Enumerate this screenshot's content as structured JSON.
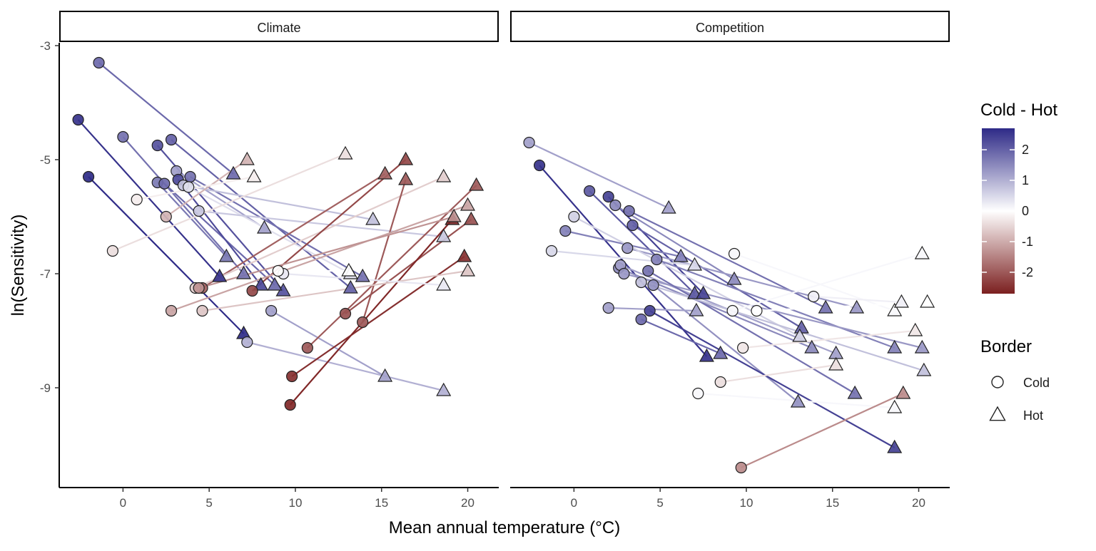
{
  "chart_data": {
    "type": "scatter",
    "xlabel": "Mean annual temperature (°C)",
    "ylabel": "ln(Sensitivity)",
    "xlim": [
      -3.7,
      21.8
    ],
    "ylim": [
      -10.75,
      -2.95
    ],
    "x_ticks": [
      0,
      5,
      10,
      15,
      20
    ],
    "y_ticks": [
      -3,
      -5,
      -7,
      -9
    ],
    "grid": false,
    "legend_position": "right",
    "color_scale": {
      "title": "Cold - Hot",
      "min": -2.7,
      "max": 2.7,
      "ticks": [
        2,
        1,
        0,
        -1,
        -2
      ],
      "low_color": "#7b1f1f",
      "mid_color": "#ffffff",
      "high_color": "#2e2a87"
    },
    "shape_legend": {
      "title": "Border",
      "items": [
        {
          "label": "Cold",
          "shape": "circle"
        },
        {
          "label": "Hot",
          "shape": "triangle"
        }
      ]
    },
    "panels": [
      {
        "label": "Climate",
        "pairs": [
          {
            "cold": [
              -1.4,
              -3.3
            ],
            "hot": [
              6.4,
              -5.25
            ],
            "value": 1.9
          },
          {
            "cold": [
              -2.6,
              -4.3
            ],
            "hot": [
              5.6,
              -7.05
            ],
            "value": 2.6
          },
          {
            "cold": [
              -2.0,
              -5.3
            ],
            "hot": [
              7.0,
              -8.05
            ],
            "value": 2.7
          },
          {
            "cold": [
              0.0,
              -4.6
            ],
            "hot": [
              7.0,
              -7.0
            ],
            "value": 1.8
          },
          {
            "cold": [
              2.0,
              -4.75
            ],
            "hot": [
              9.3,
              -7.3
            ],
            "value": 2.2
          },
          {
            "cold": [
              2.8,
              -4.65
            ],
            "hot": [
              13.2,
              -7.25
            ],
            "value": 2.0
          },
          {
            "cold": [
              2.0,
              -5.4
            ],
            "hot": [
              6.0,
              -6.7
            ],
            "value": 1.7
          },
          {
            "cold": [
              2.4,
              -5.42
            ],
            "hot": [
              8.8,
              -7.2
            ],
            "value": 1.9
          },
          {
            "cold": [
              3.1,
              -5.2
            ],
            "hot": [
              8.2,
              -6.2
            ],
            "value": 1.2
          },
          {
            "cold": [
              3.2,
              -5.35
            ],
            "hot": [
              8.0,
              -7.2
            ],
            "value": 2.3
          },
          {
            "cold": [
              3.9,
              -5.3
            ],
            "hot": [
              13.9,
              -7.05
            ],
            "value": 1.8
          },
          {
            "cold": [
              3.5,
              -5.45
            ],
            "hot": [
              14.5,
              -6.05
            ],
            "value": 0.8
          },
          {
            "cold": [
              3.8,
              -5.48
            ],
            "hot": [
              13.2,
              -7.0
            ],
            "value": 0.4
          },
          {
            "cold": [
              4.4,
              -5.9
            ],
            "hot": [
              18.6,
              -6.35
            ],
            "value": 0.7
          },
          {
            "cold": [
              8.6,
              -7.65
            ],
            "hot": [
              15.2,
              -8.8
            ],
            "value": 1.2
          },
          {
            "cold": [
              7.2,
              -8.2
            ],
            "hot": [
              18.6,
              -9.05
            ],
            "value": 1.0
          },
          {
            "cold": [
              2.5,
              -6.0
            ],
            "hot": [
              7.2,
              -5.0
            ],
            "value": -0.9
          },
          {
            "cold": [
              0.8,
              -5.7
            ],
            "hot": [
              7.6,
              -5.3
            ],
            "value": -0.2
          },
          {
            "cold": [
              -0.6,
              -6.6
            ],
            "hot": [
              12.9,
              -4.9
            ],
            "value": -0.4
          },
          {
            "cold": [
              4.6,
              -7.25
            ],
            "hot": [
              15.2,
              -5.25
            ],
            "value": -1.9
          },
          {
            "cold": [
              4.2,
              -7.25
            ],
            "hot": [
              18.6,
              -5.3
            ],
            "value": -0.6
          },
          {
            "cold": [
              7.5,
              -7.3
            ],
            "hot": [
              16.4,
              -5.0
            ],
            "value": -2.2
          },
          {
            "cold": [
              13.9,
              -7.85
            ],
            "hot": [
              16.4,
              -5.35
            ],
            "value": -2.0
          },
          {
            "cold": [
              12.9,
              -7.7
            ],
            "hot": [
              20.2,
              -6.05
            ],
            "value": -2.1
          },
          {
            "cold": [
              10.7,
              -8.3
            ],
            "hot": [
              20.5,
              -5.45
            ],
            "value": -2.0
          },
          {
            "cold": [
              9.8,
              -8.8
            ],
            "hot": [
              19.8,
              -6.7
            ],
            "value": -2.5
          },
          {
            "cold": [
              9.7,
              -9.3
            ],
            "hot": [
              19.1,
              -6.05
            ],
            "value": -2.6
          },
          {
            "cold": [
              2.8,
              -7.65
            ],
            "hot": [
              20.0,
              -5.8
            ],
            "value": -1.1
          },
          {
            "cold": [
              4.6,
              -7.65
            ],
            "hot": [
              20.0,
              -6.95
            ],
            "value": -0.7
          },
          {
            "cold": [
              9.3,
              -7.0
            ],
            "hot": [
              18.6,
              -7.2
            ],
            "value": 0.3
          },
          {
            "cold": [
              9.0,
              -6.95
            ],
            "hot": [
              13.1,
              -6.95
            ],
            "value": 0.0
          },
          {
            "cold": [
              4.4,
              -7.25
            ],
            "hot": [
              19.2,
              -6.0
            ],
            "value": -1.3
          }
        ]
      },
      {
        "label": "Competition",
        "pairs": [
          {
            "cold": [
              -2.6,
              -4.7
            ],
            "hot": [
              5.5,
              -5.85
            ],
            "value": 1.2
          },
          {
            "cold": [
              -2.0,
              -5.1
            ],
            "hot": [
              7.7,
              -8.45
            ],
            "value": 2.6
          },
          {
            "cold": [
              0.9,
              -5.55
            ],
            "hot": [
              7.0,
              -7.35
            ],
            "value": 2.1
          },
          {
            "cold": [
              2.0,
              -5.65
            ],
            "hot": [
              7.5,
              -7.35
            ],
            "value": 2.4
          },
          {
            "cold": [
              2.4,
              -5.8
            ],
            "hot": [
              9.3,
              -7.1
            ],
            "value": 1.5
          },
          {
            "cold": [
              3.2,
              -5.9
            ],
            "hot": [
              14.6,
              -7.6
            ],
            "value": 1.8
          },
          {
            "cold": [
              3.4,
              -6.15
            ],
            "hot": [
              13.2,
              -7.95
            ],
            "value": 2.0
          },
          {
            "cold": [
              -0.5,
              -6.25
            ],
            "hot": [
              6.2,
              -6.7
            ],
            "value": 1.6
          },
          {
            "cold": [
              3.1,
              -6.55
            ],
            "hot": [
              16.4,
              -7.6
            ],
            "value": 1.3
          },
          {
            "cold": [
              -1.3,
              -6.6
            ],
            "hot": [
              7.0,
              -6.85
            ],
            "value": 0.5
          },
          {
            "cold": [
              0.0,
              -6.0
            ],
            "hot": [
              13.1,
              -8.1
            ],
            "value": 0.6
          },
          {
            "cold": [
              4.8,
              -6.75
            ],
            "hot": [
              18.6,
              -8.3
            ],
            "value": 1.6
          },
          {
            "cold": [
              2.6,
              -6.9
            ],
            "hot": [
              13.8,
              -8.3
            ],
            "value": 1.5
          },
          {
            "cold": [
              2.7,
              -6.85
            ],
            "hot": [
              15.2,
              -8.4
            ],
            "value": 1.2
          },
          {
            "cold": [
              2.9,
              -7.0
            ],
            "hot": [
              20.2,
              -8.3
            ],
            "value": 1.3
          },
          {
            "cold": [
              4.3,
              -6.95
            ],
            "hot": [
              16.3,
              -9.1
            ],
            "value": 1.8
          },
          {
            "cold": [
              3.9,
              -7.15
            ],
            "hot": [
              20.3,
              -8.7
            ],
            "value": 0.8
          },
          {
            "cold": [
              4.6,
              -7.2
            ],
            "hot": [
              13.0,
              -9.25
            ],
            "value": 1.4
          },
          {
            "cold": [
              4.4,
              -7.65
            ],
            "hot": [
              18.6,
              -10.05
            ],
            "value": 2.4
          },
          {
            "cold": [
              3.9,
              -7.8
            ],
            "hot": [
              8.5,
              -8.4
            ],
            "value": 1.9
          },
          {
            "cold": [
              2.0,
              -7.6
            ],
            "hot": [
              7.1,
              -7.65
            ],
            "value": 1.2
          },
          {
            "cold": [
              9.3,
              -6.65
            ],
            "hot": [
              18.6,
              -7.65
            ],
            "value": 0.1
          },
          {
            "cold": [
              13.9,
              -7.4
            ],
            "hot": [
              19.0,
              -7.5
            ],
            "value": 0.2
          },
          {
            "cold": [
              10.6,
              -7.65
            ],
            "hot": [
              20.5,
              -7.5
            ],
            "value": 0.0
          },
          {
            "cold": [
              9.2,
              -7.65
            ],
            "hot": [
              20.2,
              -6.65
            ],
            "value": 0.1
          },
          {
            "cold": [
              9.8,
              -8.3
            ],
            "hot": [
              19.8,
              -8.0
            ],
            "value": -0.3
          },
          {
            "cold": [
              8.5,
              -8.9
            ],
            "hot": [
              15.2,
              -8.6
            ],
            "value": -0.4
          },
          {
            "cold": [
              7.2,
              -9.1
            ],
            "hot": [
              18.6,
              -9.35
            ],
            "value": 0.1
          },
          {
            "cold": [
              9.7,
              -10.4
            ],
            "hot": [
              19.1,
              -9.1
            ],
            "value": -1.4
          }
        ]
      }
    ]
  }
}
